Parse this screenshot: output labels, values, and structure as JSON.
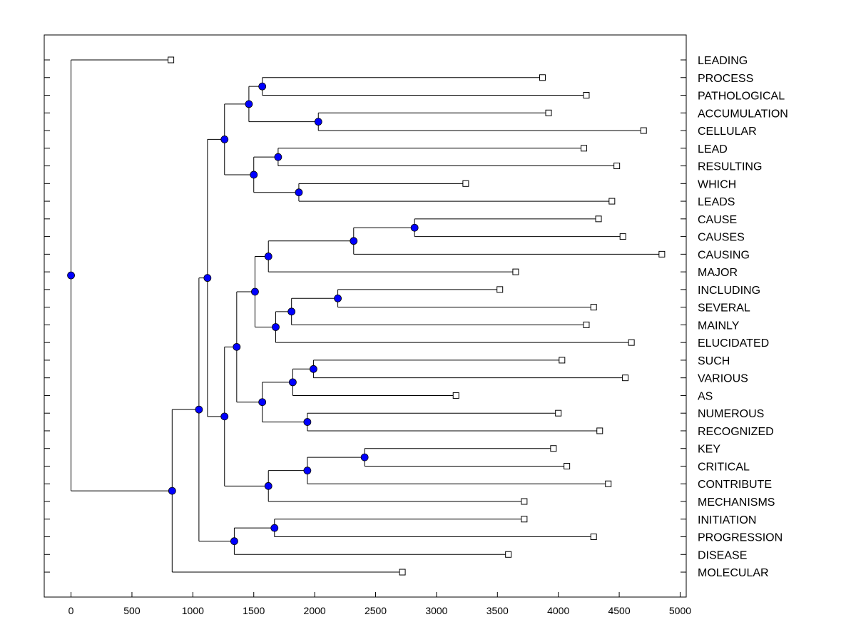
{
  "chart_data": {
    "type": "dendrogram",
    "x_axis": {
      "ticks": [
        0,
        500,
        1000,
        1500,
        2000,
        2500,
        3000,
        3500,
        4000,
        4500,
        5000
      ],
      "range": [
        -220,
        5050
      ]
    },
    "leaves": [
      {
        "label": "LEADING",
        "x": 820
      },
      {
        "label": "PROCESS",
        "x": 3870
      },
      {
        "label": "PATHOLOGICAL",
        "x": 4230
      },
      {
        "label": "ACCUMULATION",
        "x": 3920
      },
      {
        "label": "CELLULAR",
        "x": 4700
      },
      {
        "label": "LEAD",
        "x": 4210
      },
      {
        "label": "RESULTING",
        "x": 4480
      },
      {
        "label": "WHICH",
        "x": 3240
      },
      {
        "label": "LEADS",
        "x": 4440
      },
      {
        "label": "CAUSE",
        "x": 4330
      },
      {
        "label": "CAUSES",
        "x": 4530
      },
      {
        "label": "CAUSING",
        "x": 4850
      },
      {
        "label": "MAJOR",
        "x": 3650
      },
      {
        "label": "INCLUDING",
        "x": 3520
      },
      {
        "label": "SEVERAL",
        "x": 4290
      },
      {
        "label": "MAINLY",
        "x": 4230
      },
      {
        "label": "ELUCIDATED",
        "x": 4600
      },
      {
        "label": "SUCH",
        "x": 4030
      },
      {
        "label": "VARIOUS",
        "x": 4550
      },
      {
        "label": "AS",
        "x": 3160
      },
      {
        "label": "NUMEROUS",
        "x": 4000
      },
      {
        "label": "RECOGNIZED",
        "x": 4340
      },
      {
        "label": "KEY",
        "x": 3960
      },
      {
        "label": "CRITICAL",
        "x": 4070
      },
      {
        "label": "CONTRIBUTE",
        "x": 4410
      },
      {
        "label": "MECHANISMS",
        "x": 3720
      },
      {
        "label": "INITIATION",
        "x": 3720
      },
      {
        "label": "PROGRESSION",
        "x": 4290
      },
      {
        "label": "DISEASE",
        "x": 3590
      },
      {
        "label": "MOLECULAR",
        "x": 2720
      }
    ],
    "merges": [
      {
        "id": "n1",
        "x": 1570,
        "children": [
          "L1",
          "L2"
        ]
      },
      {
        "id": "n2",
        "x": 2030,
        "children": [
          "L3",
          "L4"
        ]
      },
      {
        "id": "n3",
        "x": 1460,
        "children": [
          "n1",
          "n2"
        ]
      },
      {
        "id": "n4",
        "x": 1700,
        "children": [
          "L5",
          "L6"
        ]
      },
      {
        "id": "n5",
        "x": 1870,
        "children": [
          "L7",
          "L8"
        ]
      },
      {
        "id": "n6",
        "x": 1500,
        "children": [
          "n4",
          "n5"
        ]
      },
      {
        "id": "n7",
        "x": 1260,
        "children": [
          "n3",
          "n6"
        ]
      },
      {
        "id": "n8",
        "x": 2820,
        "children": [
          "L9",
          "L10"
        ]
      },
      {
        "id": "n9",
        "x": 2320,
        "children": [
          "n8",
          "L11"
        ]
      },
      {
        "id": "n10",
        "x": 1620,
        "children": [
          "n9",
          "L12"
        ]
      },
      {
        "id": "n11",
        "x": 2190,
        "children": [
          "L13",
          "L14"
        ]
      },
      {
        "id": "n12",
        "x": 1810,
        "children": [
          "n11",
          "L15"
        ]
      },
      {
        "id": "n13",
        "x": 1680,
        "children": [
          "n12",
          "L16"
        ]
      },
      {
        "id": "n14",
        "x": 1510,
        "children": [
          "n10",
          "n13"
        ]
      },
      {
        "id": "n15",
        "x": 1990,
        "children": [
          "L17",
          "L18"
        ]
      },
      {
        "id": "n16",
        "x": 1820,
        "children": [
          "n15",
          "L19"
        ]
      },
      {
        "id": "n17",
        "x": 1940,
        "children": [
          "L20",
          "L21"
        ]
      },
      {
        "id": "n18",
        "x": 1570,
        "children": [
          "n16",
          "n17"
        ]
      },
      {
        "id": "n19",
        "x": 1360,
        "children": [
          "n14",
          "n18"
        ]
      },
      {
        "id": "n20",
        "x": 2410,
        "children": [
          "L22",
          "L23"
        ]
      },
      {
        "id": "n21",
        "x": 1940,
        "children": [
          "n20",
          "L24"
        ]
      },
      {
        "id": "n22",
        "x": 1620,
        "children": [
          "n21",
          "L25"
        ]
      },
      {
        "id": "n23",
        "x": 1260,
        "children": [
          "n19",
          "n22"
        ]
      },
      {
        "id": "n24",
        "x": 1120,
        "children": [
          "n7",
          "n23"
        ]
      },
      {
        "id": "n25",
        "x": 1670,
        "children": [
          "L26",
          "L27"
        ]
      },
      {
        "id": "n26",
        "x": 1340,
        "children": [
          "n25",
          "L28"
        ]
      },
      {
        "id": "n27",
        "x": 1050,
        "children": [
          "n24",
          "n26"
        ]
      },
      {
        "id": "n28",
        "x": 830,
        "children": [
          "n27",
          "L29"
        ]
      },
      {
        "id": "n29",
        "x": 0,
        "children": [
          "L0",
          "n28"
        ]
      }
    ],
    "colors": {
      "node": "#0000ff",
      "line": "#000000",
      "leaf_marker": "#ffffff"
    }
  }
}
